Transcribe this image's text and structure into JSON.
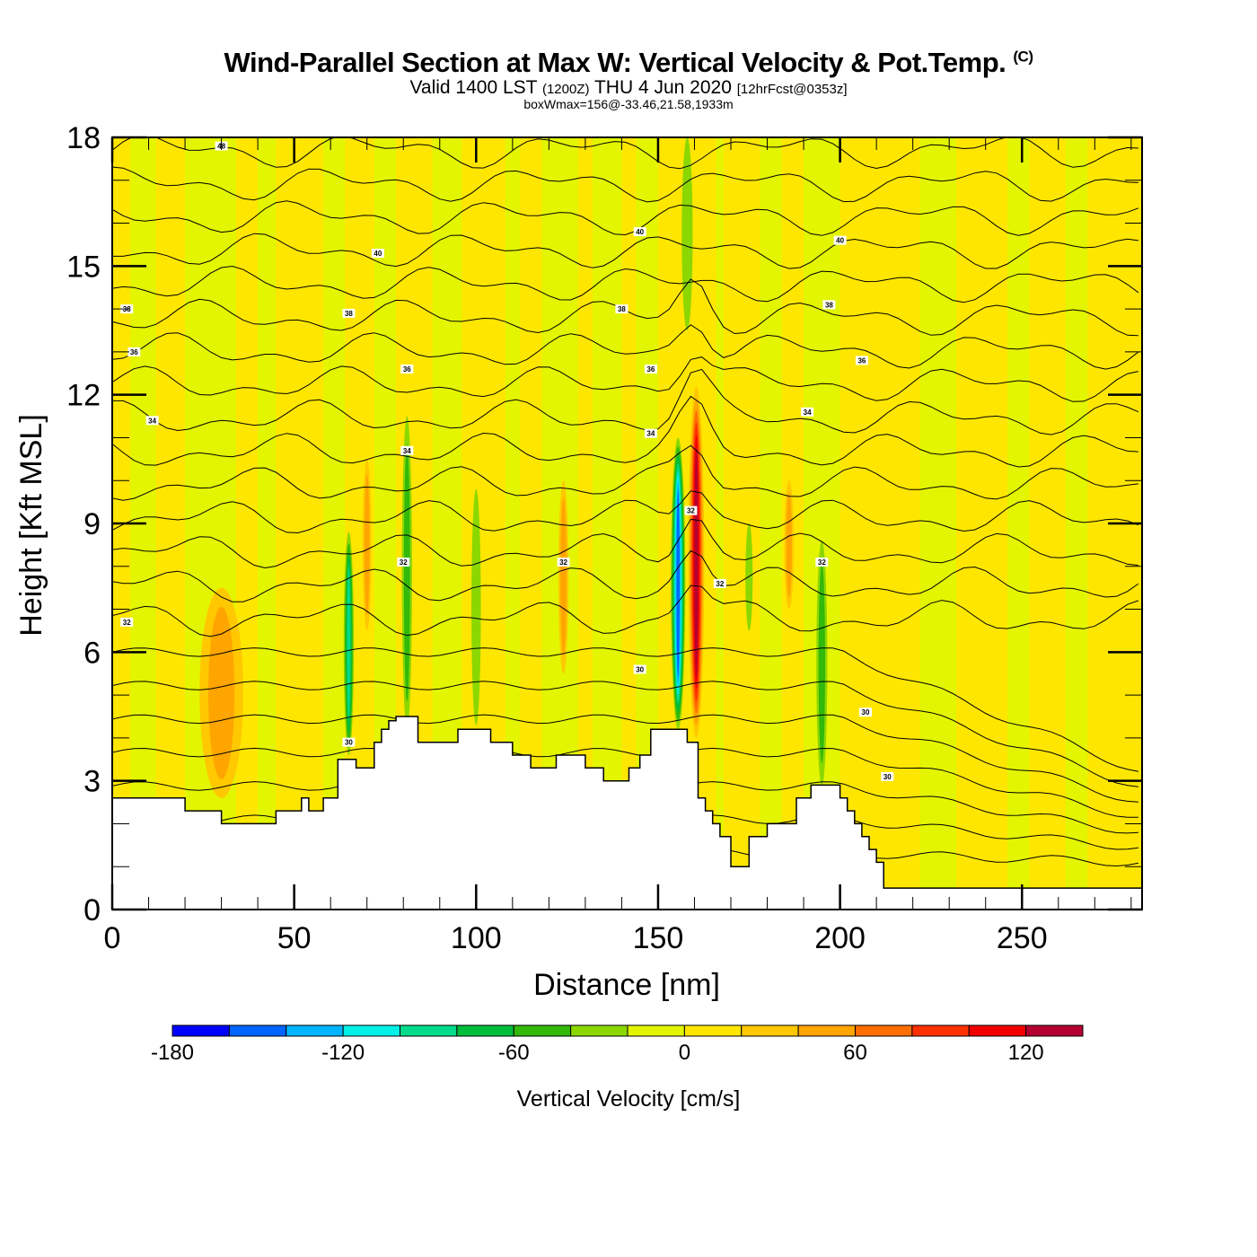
{
  "header": {
    "title_main": "Wind-Parallel Section at Max W: Vertical Velocity & Pot.Temp.",
    "title_copyright": "(C)",
    "subtitle_valid": "Valid 1400 LST",
    "subtitle_z": "(1200Z)",
    "subtitle_date": "THU 4 Jun 2020",
    "subtitle_fcst": "[12hrFcst@0353z]",
    "subtitle_box": "boxWmax=156@-33.46,21.58,1933m"
  },
  "chart_data": {
    "type": "heatmap",
    "title": "Wind-Parallel Section at Max W: Vertical Velocity & Pot.Temp.",
    "xlabel": "Distance [nm]",
    "ylabel": "Height [Kft MSL]",
    "xlim": [
      0,
      283
    ],
    "ylim": [
      0,
      18
    ],
    "xticks": [
      0,
      50,
      100,
      150,
      200,
      250
    ],
    "xtick_labels": [
      "0",
      "50",
      "100",
      "150",
      "200",
      "250"
    ],
    "yticks": [
      0,
      3,
      6,
      9,
      12,
      15,
      18
    ],
    "ytick_labels": [
      "0",
      "3",
      "6",
      "9",
      "12",
      "15",
      "18"
    ],
    "colorbar": {
      "title": "Vertical Velocity [cm/s]",
      "boundaries": [
        -180,
        -160,
        -140,
        -120,
        -100,
        -80,
        -60,
        -40,
        -20,
        0,
        20,
        40,
        60,
        80,
        100,
        120,
        140
      ],
      "colors": [
        "#0000ff",
        "#0064ff",
        "#00b4ff",
        "#00f0e6",
        "#00dc8c",
        "#00be3c",
        "#32b90a",
        "#8cd700",
        "#e1f500",
        "#ffe600",
        "#ffc800",
        "#ffa500",
        "#ff6e00",
        "#ff3200",
        "#f00000",
        "#b40032"
      ],
      "tick_values": [
        -180,
        -120,
        -60,
        0,
        60,
        120
      ],
      "tick_labels": [
        "-180",
        "-120",
        "-60",
        "0",
        "60",
        "120"
      ]
    },
    "terrain_kft": {
      "x": [
        0,
        12,
        20,
        30,
        45,
        48,
        52,
        54,
        58,
        60,
        62,
        67,
        72,
        74,
        76,
        78,
        80,
        84,
        88,
        92,
        95,
        100,
        104,
        108,
        110,
        112,
        115,
        118,
        122,
        126,
        130,
        132,
        135,
        140,
        142,
        145,
        148,
        150,
        152,
        155,
        158,
        160,
        161,
        163,
        165,
        167,
        170,
        172,
        175,
        178,
        180,
        185,
        188,
        192,
        196,
        200,
        202,
        204,
        206,
        208,
        210,
        212,
        283
      ],
      "y": [
        2.6,
        2.6,
        2.3,
        2.0,
        2.3,
        2.3,
        2.6,
        2.3,
        2.6,
        2.6,
        3.5,
        3.3,
        3.9,
        4.2,
        4.4,
        4.5,
        4.5,
        3.9,
        3.9,
        3.9,
        4.2,
        4.2,
        3.9,
        3.9,
        3.6,
        3.6,
        3.3,
        3.3,
        3.6,
        3.6,
        3.3,
        3.3,
        3.0,
        3.0,
        3.3,
        3.6,
        4.2,
        4.2,
        4.2,
        4.2,
        3.9,
        3.9,
        2.6,
        2.3,
        2.0,
        1.7,
        1.0,
        1.0,
        1.7,
        1.7,
        2.0,
        2.0,
        2.6,
        2.9,
        2.9,
        2.6,
        2.3,
        2.0,
        1.7,
        1.4,
        1.1,
        0.5,
        0.5
      ]
    },
    "contour_labels": [
      {
        "text": "48",
        "x": 30,
        "y": 17.8
      },
      {
        "text": "40",
        "x": 73,
        "y": 15.3
      },
      {
        "text": "40",
        "x": 145,
        "y": 15.8
      },
      {
        "text": "40",
        "x": 200,
        "y": 15.6
      },
      {
        "text": "38",
        "x": 4,
        "y": 14.0
      },
      {
        "text": "38",
        "x": 65,
        "y": 13.9
      },
      {
        "text": "38",
        "x": 140,
        "y": 14.0
      },
      {
        "text": "38",
        "x": 197,
        "y": 14.1
      },
      {
        "text": "36",
        "x": 6,
        "y": 13.0
      },
      {
        "text": "36",
        "x": 81,
        "y": 12.6
      },
      {
        "text": "36",
        "x": 148,
        "y": 12.6
      },
      {
        "text": "36",
        "x": 206,
        "y": 12.8
      },
      {
        "text": "34",
        "x": 11,
        "y": 11.4
      },
      {
        "text": "34",
        "x": 81,
        "y": 10.7
      },
      {
        "text": "34",
        "x": 148,
        "y": 11.1
      },
      {
        "text": "34",
        "x": 191,
        "y": 11.6
      },
      {
        "text": "32",
        "x": 159,
        "y": 9.3
      },
      {
        "text": "32",
        "x": 4,
        "y": 6.7
      },
      {
        "text": "32",
        "x": 80,
        "y": 8.1
      },
      {
        "text": "32",
        "x": 124,
        "y": 8.1
      },
      {
        "text": "32",
        "x": 167,
        "y": 7.6
      },
      {
        "text": "32",
        "x": 195,
        "y": 8.1
      },
      {
        "text": "30",
        "x": 65,
        "y": 3.9
      },
      {
        "text": "30",
        "x": 145,
        "y": 5.6
      },
      {
        "text": "30",
        "x": 207,
        "y": 4.6
      },
      {
        "text": "30",
        "x": 213,
        "y": 3.1
      }
    ],
    "w_features": [
      {
        "name": "main-updraft",
        "x": 160.5,
        "ytop": 12.2,
        "ybot": 4.0,
        "halfwidth": 2.2,
        "value": 120
      },
      {
        "name": "main-downdraft",
        "x": 155.5,
        "ytop": 11.0,
        "ybot": 4.2,
        "halfwidth": 2.0,
        "value": -140
      },
      {
        "name": "downdraft-80nm",
        "x": 81,
        "ytop": 11.5,
        "ybot": 4.2,
        "halfwidth": 1.4,
        "value": -50
      },
      {
        "name": "downdraft-65nm",
        "x": 65,
        "ytop": 8.8,
        "ybot": 3.6,
        "halfwidth": 1.4,
        "value": -80
      },
      {
        "name": "downdraft-100nm",
        "x": 100,
        "ytop": 9.8,
        "ybot": 4.3,
        "halfwidth": 1.3,
        "value": -30
      },
      {
        "name": "downdraft-194nm",
        "x": 195,
        "ytop": 8.6,
        "ybot": 2.9,
        "halfwidth": 1.5,
        "value": -40
      },
      {
        "name": "downdraft-175nm",
        "x": 175,
        "ytop": 9.0,
        "ybot": 6.5,
        "halfwidth": 1.0,
        "value": -30
      },
      {
        "name": "downdraft-157nm-top",
        "x": 158,
        "ytop": 18.0,
        "ybot": 13.5,
        "halfwidth": 1.5,
        "value": -30
      },
      {
        "name": "updraft-30nm",
        "x": 30,
        "ytop": 7.5,
        "ybot": 2.6,
        "halfwidth": 6.0,
        "value": 40
      },
      {
        "name": "updraft-124nm",
        "x": 124,
        "ytop": 10.0,
        "ybot": 5.5,
        "halfwidth": 1.4,
        "value": 40
      },
      {
        "name": "updraft-186nm",
        "x": 186,
        "ytop": 10.0,
        "ybot": 7.0,
        "halfwidth": 1.3,
        "value": 40
      },
      {
        "name": "updraft-70nm",
        "x": 70,
        "ytop": 10.5,
        "ybot": 6.5,
        "halfwidth": 1.2,
        "value": 40
      }
    ]
  }
}
